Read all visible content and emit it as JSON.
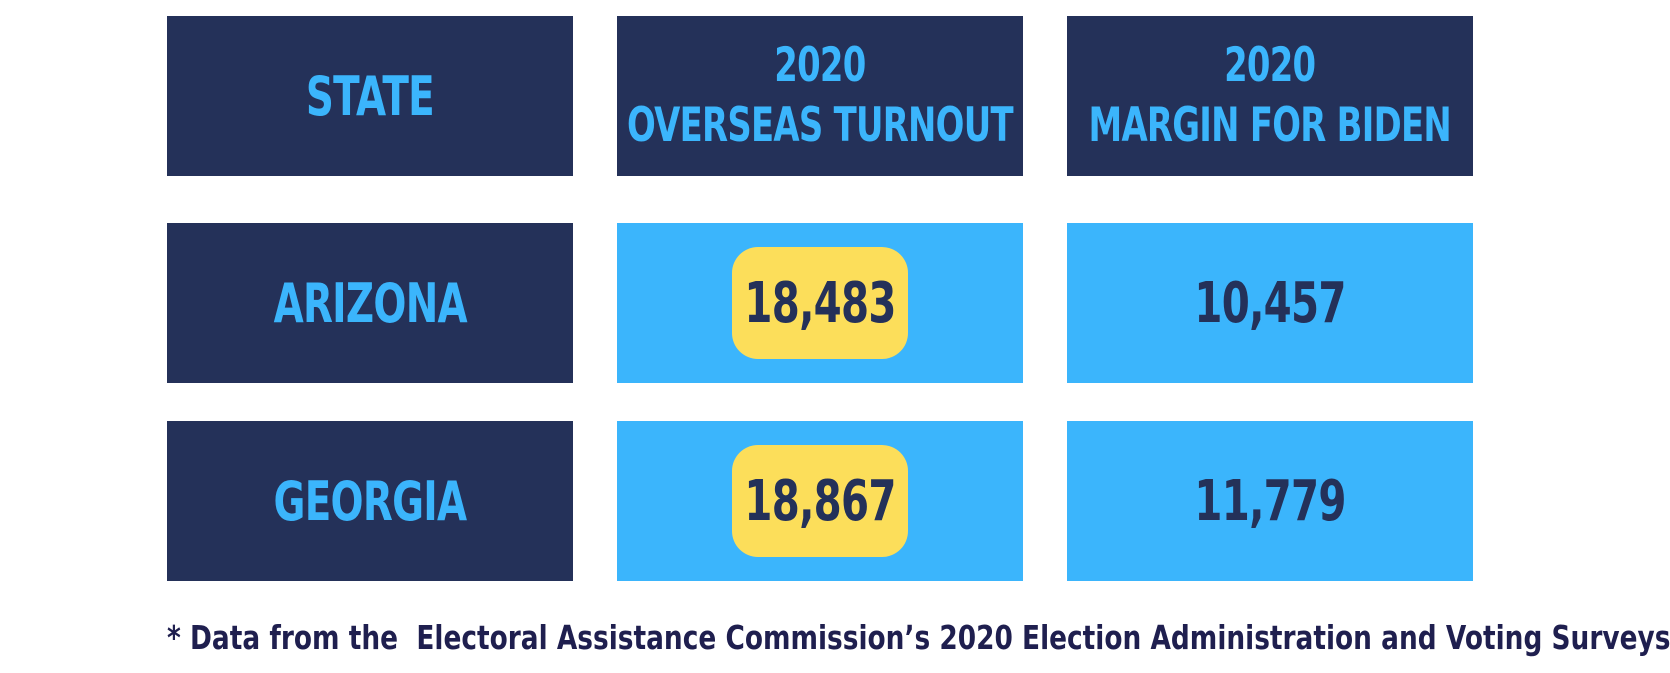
{
  "chart_data": {
    "type": "table",
    "columns": [
      {
        "line1": "STATE",
        "line2": ""
      },
      {
        "line1": "2020",
        "line2": "OVERSEAS TURNOUT"
      },
      {
        "line1": "2020",
        "line2": "MARGIN FOR BIDEN"
      }
    ],
    "rows": [
      {
        "state": "ARIZONA",
        "turnout": "18,483",
        "margin": "10,457"
      },
      {
        "state": "GEORGIA",
        "turnout": "18,867",
        "margin": "11,779"
      }
    ],
    "footnote": "* Data from the  Electoral Assistance Commission’s 2020 Election Administration and Voting Surveys"
  },
  "colors": {
    "dark_navy": "#243159",
    "light_blue": "#3bb5fc",
    "highlight_yellow": "#fcde5a",
    "footnote_text": "#1f1f4f"
  }
}
